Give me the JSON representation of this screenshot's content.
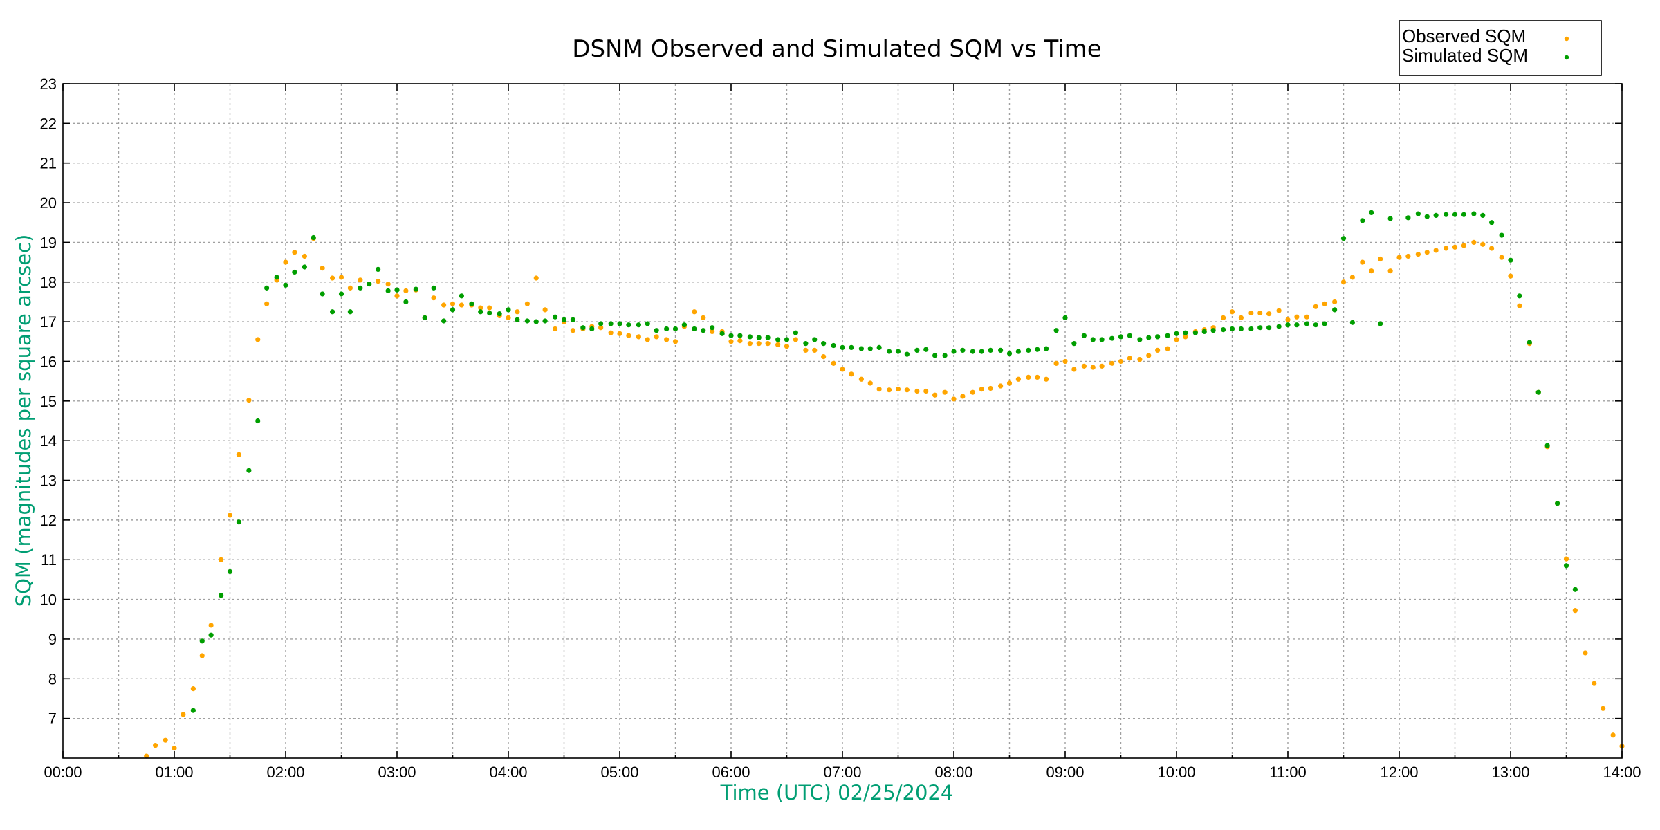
{
  "chart_data": {
    "type": "scatter",
    "title": "DSNM Observed and Simulated SQM vs Time",
    "xlabel": "Time (UTC)   02/25/2024",
    "ylabel": "SQM (magnitudes per square arcsec)",
    "xlim": [
      0,
      14
    ],
    "ylim": [
      6,
      23
    ],
    "x_ticks": [
      "00:00",
      "01:00",
      "02:00",
      "03:00",
      "04:00",
      "05:00",
      "06:00",
      "07:00",
      "08:00",
      "09:00",
      "10:00",
      "11:00",
      "12:00",
      "13:00",
      "14:00"
    ],
    "y_ticks": [
      "7",
      "8",
      "9",
      "10",
      "11",
      "12",
      "13",
      "14",
      "15",
      "16",
      "17",
      "18",
      "19",
      "20",
      "21",
      "22",
      "23"
    ],
    "grid": true,
    "legend_position": "top-right",
    "x_units": "hours UTC",
    "series": [
      {
        "name": "Observed SQM",
        "color": "#ffa500",
        "points": [
          [
            0.75,
            6.05
          ],
          [
            0.83,
            6.32
          ],
          [
            0.92,
            6.45
          ],
          [
            1.0,
            6.25
          ],
          [
            1.08,
            7.1
          ],
          [
            1.17,
            7.75
          ],
          [
            1.25,
            8.58
          ],
          [
            1.33,
            9.35
          ],
          [
            1.42,
            11.0
          ],
          [
            1.5,
            12.12
          ],
          [
            1.58,
            13.65
          ],
          [
            1.67,
            15.02
          ],
          [
            1.75,
            16.55
          ],
          [
            1.83,
            17.45
          ],
          [
            1.92,
            18.05
          ],
          [
            2.0,
            18.5
          ],
          [
            2.08,
            18.75
          ],
          [
            2.17,
            18.65
          ],
          [
            2.25,
            19.1
          ],
          [
            2.33,
            18.35
          ],
          [
            2.42,
            18.1
          ],
          [
            2.5,
            18.12
          ],
          [
            2.58,
            17.85
          ],
          [
            2.67,
            18.05
          ],
          [
            2.75,
            17.95
          ],
          [
            2.83,
            18.02
          ],
          [
            2.92,
            17.95
          ],
          [
            3.0,
            17.65
          ],
          [
            3.08,
            17.78
          ],
          [
            3.17,
            17.8
          ],
          [
            3.25,
            17.1
          ],
          [
            3.33,
            17.6
          ],
          [
            3.42,
            17.42
          ],
          [
            3.5,
            17.45
          ],
          [
            3.58,
            17.42
          ],
          [
            3.67,
            17.42
          ],
          [
            3.75,
            17.35
          ],
          [
            3.83,
            17.35
          ],
          [
            3.92,
            17.15
          ],
          [
            4.0,
            17.1
          ],
          [
            4.08,
            17.25
          ],
          [
            4.17,
            17.45
          ],
          [
            4.25,
            18.1
          ],
          [
            4.33,
            17.3
          ],
          [
            4.42,
            16.82
          ],
          [
            4.5,
            17.0
          ],
          [
            4.58,
            16.78
          ],
          [
            4.67,
            16.82
          ],
          [
            4.75,
            16.88
          ],
          [
            4.83,
            16.85
          ],
          [
            4.92,
            16.72
          ],
          [
            5.0,
            16.7
          ],
          [
            5.08,
            16.65
          ],
          [
            5.17,
            16.62
          ],
          [
            5.25,
            16.55
          ],
          [
            5.33,
            16.62
          ],
          [
            5.42,
            16.55
          ],
          [
            5.5,
            16.5
          ],
          [
            5.58,
            16.88
          ],
          [
            5.67,
            17.25
          ],
          [
            5.75,
            17.1
          ],
          [
            5.83,
            16.75
          ],
          [
            5.92,
            16.75
          ],
          [
            6.0,
            16.5
          ],
          [
            6.08,
            16.52
          ],
          [
            6.17,
            16.45
          ],
          [
            6.25,
            16.45
          ],
          [
            6.33,
            16.45
          ],
          [
            6.42,
            16.42
          ],
          [
            6.5,
            16.38
          ],
          [
            6.58,
            16.55
          ],
          [
            6.67,
            16.28
          ],
          [
            6.75,
            16.28
          ],
          [
            6.83,
            16.12
          ],
          [
            6.92,
            15.95
          ],
          [
            7.0,
            15.8
          ],
          [
            7.08,
            15.68
          ],
          [
            7.17,
            15.55
          ],
          [
            7.25,
            15.45
          ],
          [
            7.33,
            15.3
          ],
          [
            7.42,
            15.28
          ],
          [
            7.5,
            15.3
          ],
          [
            7.58,
            15.28
          ],
          [
            7.67,
            15.25
          ],
          [
            7.75,
            15.25
          ],
          [
            7.83,
            15.15
          ],
          [
            7.92,
            15.22
          ],
          [
            8.0,
            15.05
          ],
          [
            8.08,
            15.12
          ],
          [
            8.17,
            15.22
          ],
          [
            8.25,
            15.3
          ],
          [
            8.33,
            15.32
          ],
          [
            8.42,
            15.38
          ],
          [
            8.5,
            15.45
          ],
          [
            8.58,
            15.55
          ],
          [
            8.67,
            15.6
          ],
          [
            8.75,
            15.6
          ],
          [
            8.83,
            15.55
          ],
          [
            8.92,
            15.95
          ],
          [
            9.0,
            16.0
          ],
          [
            9.08,
            15.8
          ],
          [
            9.17,
            15.88
          ],
          [
            9.25,
            15.85
          ],
          [
            9.33,
            15.88
          ],
          [
            9.42,
            15.95
          ],
          [
            9.5,
            16.0
          ],
          [
            9.58,
            16.08
          ],
          [
            9.67,
            16.05
          ],
          [
            9.75,
            16.15
          ],
          [
            9.83,
            16.28
          ],
          [
            9.92,
            16.32
          ],
          [
            10.0,
            16.55
          ],
          [
            10.08,
            16.62
          ],
          [
            10.17,
            16.75
          ],
          [
            10.25,
            16.8
          ],
          [
            10.33,
            16.85
          ],
          [
            10.42,
            17.1
          ],
          [
            10.5,
            17.25
          ],
          [
            10.58,
            17.1
          ],
          [
            10.67,
            17.22
          ],
          [
            10.75,
            17.22
          ],
          [
            10.83,
            17.2
          ],
          [
            10.92,
            17.28
          ],
          [
            11.0,
            17.05
          ],
          [
            11.08,
            17.12
          ],
          [
            11.17,
            17.12
          ],
          [
            11.25,
            17.38
          ],
          [
            11.33,
            17.45
          ],
          [
            11.42,
            17.5
          ],
          [
            11.5,
            18.0
          ],
          [
            11.58,
            18.12
          ],
          [
            11.67,
            18.5
          ],
          [
            11.75,
            18.28
          ],
          [
            11.83,
            18.58
          ],
          [
            11.92,
            18.28
          ],
          [
            12.0,
            18.62
          ],
          [
            12.08,
            18.65
          ],
          [
            12.17,
            18.7
          ],
          [
            12.25,
            18.75
          ],
          [
            12.33,
            18.8
          ],
          [
            12.42,
            18.85
          ],
          [
            12.5,
            18.88
          ],
          [
            12.58,
            18.92
          ],
          [
            12.67,
            19.0
          ],
          [
            12.75,
            18.95
          ],
          [
            12.83,
            18.85
          ],
          [
            12.92,
            18.62
          ],
          [
            13.0,
            18.15
          ],
          [
            13.08,
            17.4
          ],
          [
            13.17,
            16.45
          ],
          [
            13.25,
            15.22
          ],
          [
            13.33,
            13.85
          ],
          [
            13.42,
            12.42
          ],
          [
            13.5,
            11.02
          ],
          [
            13.58,
            9.72
          ],
          [
            13.67,
            8.65
          ],
          [
            13.75,
            7.88
          ],
          [
            13.83,
            7.25
          ],
          [
            13.92,
            6.58
          ],
          [
            14.0,
            6.3
          ]
        ]
      },
      {
        "name": "Simulated SQM",
        "color": "#009e00",
        "points": [
          [
            1.17,
            7.2
          ],
          [
            1.25,
            8.95
          ],
          [
            1.33,
            9.1
          ],
          [
            1.42,
            10.1
          ],
          [
            1.5,
            10.7
          ],
          [
            1.58,
            11.95
          ],
          [
            1.67,
            13.25
          ],
          [
            1.75,
            14.5
          ],
          [
            1.83,
            17.85
          ],
          [
            1.92,
            18.12
          ],
          [
            2.0,
            17.92
          ],
          [
            2.08,
            18.25
          ],
          [
            2.17,
            18.38
          ],
          [
            2.25,
            19.12
          ],
          [
            2.33,
            17.7
          ],
          [
            2.42,
            17.25
          ],
          [
            2.5,
            17.7
          ],
          [
            2.58,
            17.25
          ],
          [
            2.67,
            17.85
          ],
          [
            2.75,
            17.95
          ],
          [
            2.83,
            18.32
          ],
          [
            2.92,
            17.78
          ],
          [
            3.0,
            17.8
          ],
          [
            3.08,
            17.5
          ],
          [
            3.17,
            17.82
          ],
          [
            3.25,
            17.1
          ],
          [
            3.33,
            17.85
          ],
          [
            3.42,
            17.02
          ],
          [
            3.5,
            17.3
          ],
          [
            3.58,
            17.65
          ],
          [
            3.67,
            17.45
          ],
          [
            3.75,
            17.25
          ],
          [
            3.83,
            17.22
          ],
          [
            3.92,
            17.2
          ],
          [
            4.0,
            17.3
          ],
          [
            4.08,
            17.05
          ],
          [
            4.17,
            17.02
          ],
          [
            4.25,
            17.0
          ],
          [
            4.33,
            17.02
          ],
          [
            4.42,
            17.12
          ],
          [
            4.5,
            17.05
          ],
          [
            4.58,
            17.05
          ],
          [
            4.67,
            16.85
          ],
          [
            4.75,
            16.82
          ],
          [
            4.83,
            16.95
          ],
          [
            4.92,
            16.95
          ],
          [
            5.0,
            16.95
          ],
          [
            5.08,
            16.92
          ],
          [
            5.17,
            16.92
          ],
          [
            5.25,
            16.95
          ],
          [
            5.33,
            16.78
          ],
          [
            5.42,
            16.82
          ],
          [
            5.5,
            16.82
          ],
          [
            5.58,
            16.92
          ],
          [
            5.67,
            16.82
          ],
          [
            5.75,
            16.78
          ],
          [
            5.83,
            16.85
          ],
          [
            5.92,
            16.7
          ],
          [
            6.0,
            16.65
          ],
          [
            6.08,
            16.65
          ],
          [
            6.17,
            16.62
          ],
          [
            6.25,
            16.6
          ],
          [
            6.33,
            16.6
          ],
          [
            6.42,
            16.55
          ],
          [
            6.5,
            16.55
          ],
          [
            6.58,
            16.72
          ],
          [
            6.67,
            16.45
          ],
          [
            6.75,
            16.55
          ],
          [
            6.83,
            16.45
          ],
          [
            6.92,
            16.4
          ],
          [
            7.0,
            16.35
          ],
          [
            7.08,
            16.35
          ],
          [
            7.17,
            16.32
          ],
          [
            7.25,
            16.32
          ],
          [
            7.33,
            16.35
          ],
          [
            7.42,
            16.25
          ],
          [
            7.5,
            16.25
          ],
          [
            7.58,
            16.18
          ],
          [
            7.67,
            16.28
          ],
          [
            7.75,
            16.3
          ],
          [
            7.83,
            16.15
          ],
          [
            7.92,
            16.15
          ],
          [
            8.0,
            16.25
          ],
          [
            8.08,
            16.28
          ],
          [
            8.17,
            16.25
          ],
          [
            8.25,
            16.25
          ],
          [
            8.33,
            16.28
          ],
          [
            8.42,
            16.28
          ],
          [
            8.5,
            16.2
          ],
          [
            8.58,
            16.25
          ],
          [
            8.67,
            16.28
          ],
          [
            8.75,
            16.3
          ],
          [
            8.83,
            16.32
          ],
          [
            8.92,
            16.78
          ],
          [
            9.0,
            17.1
          ],
          [
            9.08,
            16.45
          ],
          [
            9.17,
            16.65
          ],
          [
            9.25,
            16.55
          ],
          [
            9.33,
            16.55
          ],
          [
            9.42,
            16.58
          ],
          [
            9.5,
            16.62
          ],
          [
            9.58,
            16.65
          ],
          [
            9.67,
            16.55
          ],
          [
            9.75,
            16.6
          ],
          [
            9.83,
            16.62
          ],
          [
            9.92,
            16.65
          ],
          [
            10.0,
            16.7
          ],
          [
            10.08,
            16.72
          ],
          [
            10.17,
            16.72
          ],
          [
            10.25,
            16.75
          ],
          [
            10.33,
            16.78
          ],
          [
            10.42,
            16.8
          ],
          [
            10.5,
            16.82
          ],
          [
            10.58,
            16.82
          ],
          [
            10.67,
            16.82
          ],
          [
            10.75,
            16.85
          ],
          [
            10.83,
            16.85
          ],
          [
            10.92,
            16.88
          ],
          [
            11.0,
            16.92
          ],
          [
            11.08,
            16.92
          ],
          [
            11.17,
            16.95
          ],
          [
            11.25,
            16.92
          ],
          [
            11.33,
            16.95
          ],
          [
            11.42,
            17.3
          ],
          [
            11.5,
            19.1
          ],
          [
            11.58,
            16.98
          ],
          [
            11.67,
            19.55
          ],
          [
            11.75,
            19.75
          ],
          [
            11.83,
            16.95
          ],
          [
            11.92,
            19.6
          ],
          [
            12.08,
            19.62
          ],
          [
            12.17,
            19.72
          ],
          [
            12.25,
            19.65
          ],
          [
            12.33,
            19.68
          ],
          [
            12.42,
            19.7
          ],
          [
            12.5,
            19.7
          ],
          [
            12.58,
            19.7
          ],
          [
            12.67,
            19.72
          ],
          [
            12.75,
            19.68
          ],
          [
            12.83,
            19.5
          ],
          [
            12.92,
            19.18
          ],
          [
            13.0,
            18.55
          ],
          [
            13.08,
            17.65
          ],
          [
            13.17,
            16.48
          ],
          [
            13.25,
            15.22
          ],
          [
            13.33,
            13.88
          ],
          [
            13.42,
            12.42
          ],
          [
            13.5,
            10.85
          ],
          [
            13.58,
            10.25
          ]
        ]
      }
    ]
  }
}
